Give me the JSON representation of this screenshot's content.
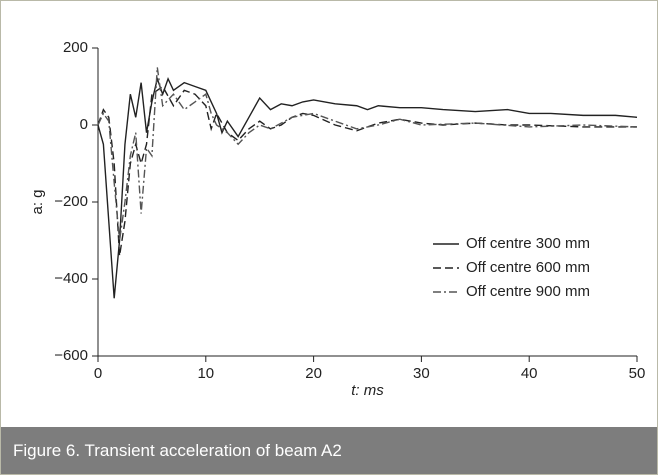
{
  "chart_data": {
    "type": "line",
    "x_label": "t: ms",
    "y_label": "a: g",
    "xlim": [
      0,
      50
    ],
    "xticks": [
      0,
      10,
      20,
      30,
      40,
      50
    ],
    "ylim": [
      -600,
      200
    ],
    "yticks": [
      {
        "value": -600,
        "label": "−600"
      },
      {
        "value": -400,
        "label": "−400"
      },
      {
        "value": -200,
        "label": "−200"
      },
      0,
      200
    ],
    "grid": false,
    "legend": "center right",
    "series": [
      {
        "name": "Off centre 300 mm",
        "color": "#222222",
        "line_style": "solid",
        "x": [
          0,
          0.5,
          1,
          1.5,
          2,
          2.5,
          3,
          3.5,
          4,
          4.5,
          5,
          5.5,
          6,
          6.5,
          7,
          8,
          9,
          10,
          10.5,
          11,
          11.5,
          12,
          13,
          14,
          15,
          16,
          17,
          18,
          19,
          20,
          22,
          24,
          25,
          26,
          28,
          30,
          32,
          35,
          38,
          40,
          42,
          45,
          48,
          50
        ],
        "values": [
          0,
          -50,
          -250,
          -450,
          -300,
          -50,
          80,
          20,
          110,
          -20,
          60,
          120,
          80,
          120,
          90,
          110,
          100,
          90,
          60,
          30,
          -20,
          10,
          -30,
          20,
          70,
          40,
          55,
          50,
          60,
          65,
          55,
          50,
          40,
          50,
          45,
          45,
          40,
          35,
          40,
          30,
          30,
          25,
          25,
          20
        ]
      },
      {
        "name": "Off centre 600 mm",
        "color": "#222222",
        "line_style": "dashed",
        "x": [
          0,
          0.5,
          1,
          1.5,
          2,
          2.5,
          3,
          3.5,
          4,
          4.5,
          5,
          6,
          7,
          8,
          9,
          10,
          10.5,
          11,
          12,
          13,
          14,
          15,
          16,
          17,
          18,
          19,
          20,
          22,
          24,
          26,
          28,
          30,
          32,
          35,
          38,
          40,
          45,
          50
        ],
        "values": [
          0,
          40,
          20,
          -100,
          -340,
          -250,
          -100,
          -50,
          -100,
          -50,
          80,
          100,
          50,
          90,
          80,
          50,
          -10,
          30,
          -20,
          -40,
          -10,
          10,
          -10,
          0,
          20,
          30,
          25,
          0,
          -15,
          5,
          15,
          5,
          0,
          5,
          0,
          0,
          -5,
          -5
        ]
      },
      {
        "name": "Off centre 900 mm",
        "color": "#555555",
        "line_style": "dashdot",
        "x": [
          0,
          0.5,
          1,
          1.5,
          2,
          2.5,
          3,
          3.5,
          4,
          4.5,
          5,
          5.5,
          6,
          7,
          8,
          9,
          10,
          10.5,
          11,
          12,
          13,
          14,
          15,
          16,
          18,
          20,
          22,
          24,
          26,
          28,
          30,
          35,
          40,
          45,
          50
        ],
        "values": [
          0,
          30,
          10,
          -150,
          -300,
          -200,
          -80,
          -20,
          -230,
          -60,
          -80,
          150,
          50,
          80,
          40,
          60,
          80,
          30,
          0,
          -20,
          -50,
          -20,
          0,
          -10,
          20,
          30,
          10,
          -10,
          0,
          15,
          0,
          5,
          -5,
          0,
          -5
        ]
      }
    ]
  },
  "caption": "Figure 6. Transient acceleration of beam A2"
}
